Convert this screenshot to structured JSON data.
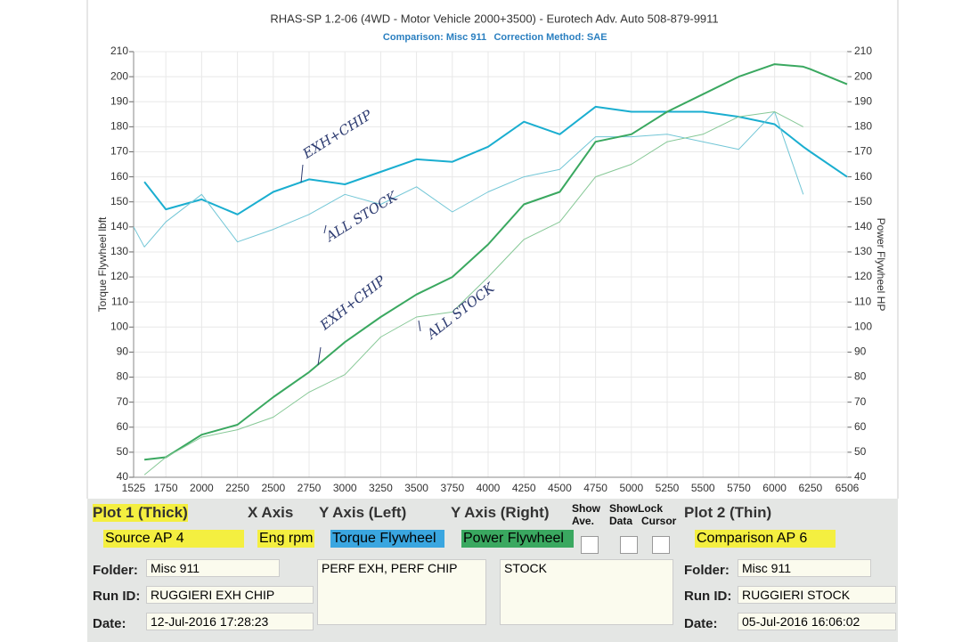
{
  "chart_data": {
    "type": "line",
    "title": "RHAS-SP 1.2-06  (4WD - Motor Vehicle 2000+3500) - Eurotech Adv. Auto 508-879-9911",
    "subtitle": [
      "Comparison: Misc 911",
      "Correction Method: SAE"
    ],
    "y_label": "Torque Flywheel lbft",
    "y2_label": "Power Flywheel HP",
    "annotations": [
      "EXH+CHIP",
      "ALL STOCK",
      "EXH+CHIP",
      "ALL STOCK"
    ],
    "x": [
      1525,
      1600,
      1750,
      2000,
      2250,
      2500,
      2750,
      3000,
      3250,
      3500,
      3750,
      4000,
      4250,
      4500,
      4750,
      5000,
      5250,
      5500,
      5750,
      6000,
      6200,
      6250,
      6506
    ],
    "xlim": [
      1525,
      6506
    ],
    "xticks": [
      1525,
      1750,
      2000,
      2250,
      2500,
      2750,
      3000,
      3250,
      3500,
      3750,
      4000,
      4250,
      4500,
      4750,
      5000,
      5250,
      5500,
      5750,
      6000,
      6250,
      6506
    ],
    "ylim": [
      40,
      210
    ],
    "yticks": [
      40,
      50,
      60,
      70,
      80,
      90,
      100,
      110,
      120,
      130,
      140,
      150,
      160,
      170,
      180,
      190,
      200,
      210
    ],
    "y2lim": [
      40,
      210
    ],
    "y2ticks": [
      40,
      50,
      60,
      70,
      80,
      90,
      100,
      110,
      120,
      130,
      140,
      150,
      160,
      170,
      180,
      190,
      200,
      210
    ],
    "grid": true,
    "series": [
      {
        "name": "Torque Flywheel",
        "color": "#1aaed0",
        "width": 2,
        "values": [
          null,
          158,
          147,
          151,
          145,
          154,
          159,
          157,
          162,
          167,
          166,
          172,
          182,
          177,
          188,
          186,
          186,
          186,
          184,
          181,
          172,
          170,
          160
        ]
      },
      {
        "name": "Torque Flywheel",
        "color": "#72c6d6",
        "width": 1,
        "values": [
          140,
          132,
          142,
          153,
          134,
          139,
          145,
          153,
          149,
          156,
          146,
          154,
          160,
          163,
          176,
          176,
          177,
          174,
          171,
          186,
          153,
          null,
          null
        ]
      },
      {
        "name": "Power Flywheel",
        "color": "#3aa860",
        "width": 2,
        "axis": "y2",
        "values": [
          null,
          47,
          48,
          57,
          61,
          72,
          82,
          94,
          104,
          113,
          120,
          133,
          149,
          154,
          174,
          177,
          186,
          193,
          200,
          205,
          204,
          203,
          197
        ]
      },
      {
        "name": "Power Flywheel",
        "color": "#86c896",
        "width": 1,
        "axis": "y2",
        "values": [
          null,
          41,
          48,
          56,
          59,
          64,
          74,
          81,
          96,
          104,
          106,
          120,
          135,
          142,
          160,
          165,
          174,
          177,
          184,
          186,
          180,
          null,
          null
        ]
      }
    ]
  },
  "panel": {
    "plot1": "Plot 1 (Thick)",
    "x_axis": "X Axis",
    "y_left": "Y Axis (Left)",
    "y_right": "Y Axis (Right)",
    "show_ave": "Show Ave.",
    "show_data": "ShowLock Data",
    "cursor": "Cursor",
    "plot2": "Plot 2 (Thin)",
    "source": "Source AP 4",
    "xsel": "Eng rpm",
    "ysel_left": "Torque Flywheel",
    "ysel_right": "Power Flywheel",
    "comparison": "Comparison AP 6",
    "left": {
      "folder_label": "Folder:",
      "folder": "Misc 911",
      "run_label": "Run ID:",
      "run": "RUGGIERI EXH CHIP",
      "date_label": "Date:",
      "date": "12-Jul-2016  17:28:23"
    },
    "notes1": "PERF EXH, PERF CHIP",
    "notes2": "STOCK",
    "right": {
      "folder_label": "Folder:",
      "folder": "Misc 911",
      "run_label": "Run ID:",
      "run": "RUGGIERI STOCK",
      "date_label": "Date:",
      "date": "05-Jul-2016  16:06:02"
    }
  }
}
